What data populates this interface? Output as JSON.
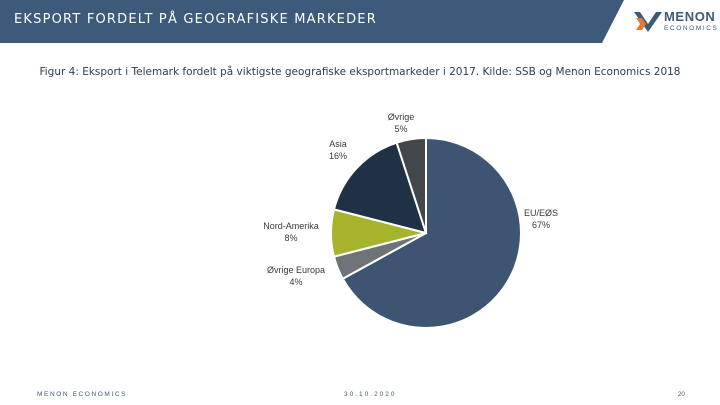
{
  "header": {
    "title": "EKSPORT FORDELT PÅ GEOGRAFISKE MARKEDER",
    "band_color": "#3d5a7a"
  },
  "logo": {
    "word": "MENON",
    "sub": "ECONOMICS",
    "icon": "menon-logo-icon",
    "colors": [
      "#3d5a7a",
      "#e67a2e"
    ]
  },
  "caption": "Figur 4: Eksport i Telemark fordelt på viktigste geografiske eksportmarkeder i 2017. Kilde: SSB og Menon Economics 2018",
  "chart_data": {
    "type": "pie",
    "slices": [
      {
        "label": "EU/EØS",
        "value": 67,
        "value_label": "67%",
        "color": "#3d5572"
      },
      {
        "label": "Øvrige Europa",
        "value": 4,
        "value_label": "4%",
        "color": "#6e7377"
      },
      {
        "label": "Nord-Amerika",
        "value": 8,
        "value_label": "8%",
        "color": "#a6b32c"
      },
      {
        "label": "Asia",
        "value": 16,
        "value_label": "16%",
        "color": "#203145"
      },
      {
        "label": "Øvrige",
        "value": 5,
        "value_label": "5%",
        "color": "#43464a"
      }
    ]
  },
  "footer": {
    "left": "MENON ECONOMICS",
    "date": "30.10.2020",
    "page": "20"
  }
}
